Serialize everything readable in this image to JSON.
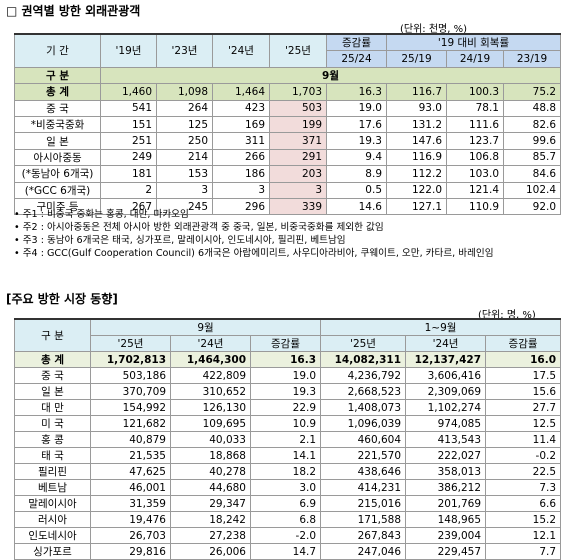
{
  "title": "□ 권역별 방한 외래관광객",
  "regional": {
    "unit": "(단위: 천명, %)",
    "header": {
      "period": "기 간",
      "years": [
        "'19년",
        "'23년",
        "'24년",
        "'25년"
      ],
      "change": "증감률",
      "recovery": "'19 대비 회복률",
      "sub": [
        "25/24",
        "25/19",
        "24/19",
        "23/19"
      ],
      "category": "구 분",
      "month": "9월"
    },
    "rows": [
      [
        "총 계",
        "1,460",
        "1,098",
        "1,464",
        "1,703",
        "16.3",
        "116.7",
        "100.3",
        "75.2"
      ],
      [
        "중 국",
        "541",
        "264",
        "423",
        "503",
        "19.0",
        "93.0",
        "78.1",
        "48.8"
      ],
      [
        "*비중국중화",
        "151",
        "125",
        "169",
        "199",
        "17.6",
        "131.2",
        "111.6",
        "82.6"
      ],
      [
        "일 본",
        "251",
        "250",
        "311",
        "371",
        "19.3",
        "147.6",
        "123.7",
        "99.6"
      ],
      [
        "아시아중동",
        "249",
        "214",
        "266",
        "291",
        "9.4",
        "116.9",
        "106.8",
        "85.7"
      ],
      [
        "(*동남아 6개국)",
        "181",
        "153",
        "186",
        "203",
        "8.9",
        "112.2",
        "103.0",
        "84.6"
      ],
      [
        "(*GCC 6개국)",
        "2",
        "3",
        "3",
        "3",
        "0.5",
        "122.0",
        "121.4",
        "102.4"
      ],
      [
        "구미주 등",
        "267",
        "245",
        "296",
        "339",
        "14.6",
        "127.1",
        "110.9",
        "92.0"
      ]
    ],
    "notes": [
      "• 주1 : 비중국 중화는 홍콩, 대만, 마카오임",
      "• 주2 : 아시아중동은 전체 아시아 방한 외래관광객 중 중국, 일본, 비중국중화를 제외한 값임",
      "• 주3 : 동남아 6개국은 태국, 싱가포르, 말레이시아, 인도네시아, 필리핀, 베트남임",
      "• 주4 : GCC(Gulf Cooperation Council) 6개국은 아랍에미리트, 사우디아라비아, 쿠웨이트, 오만, 카타르, 바레인임"
    ]
  },
  "markets": {
    "title": "[주요 방한 시장 동향]",
    "unit": "(단위: 명, %)",
    "header": {
      "category": "구 분",
      "groups": [
        "9월",
        "1~9월"
      ],
      "cols": [
        "'25년",
        "'24년",
        "증감률",
        "'25년",
        "'24년",
        "증감률"
      ]
    },
    "rows": [
      [
        "총 계",
        "1,702,813",
        "1,464,300",
        "16.3",
        "14,082,311",
        "12,137,427",
        "16.0"
      ],
      [
        "중 국",
        "503,186",
        "422,809",
        "19.0",
        "4,236,792",
        "3,606,416",
        "17.5"
      ],
      [
        "일 본",
        "370,709",
        "310,652",
        "19.3",
        "2,668,523",
        "2,309,069",
        "15.6"
      ],
      [
        "대 만",
        "154,992",
        "126,130",
        "22.9",
        "1,408,073",
        "1,102,274",
        "27.7"
      ],
      [
        "미 국",
        "121,682",
        "109,695",
        "10.9",
        "1,096,039",
        "974,085",
        "12.5"
      ],
      [
        "홍 콩",
        "40,879",
        "40,033",
        "2.1",
        "460,604",
        "413,543",
        "11.4"
      ],
      [
        "태 국",
        "21,535",
        "18,868",
        "14.1",
        "221,570",
        "222,027",
        "-0.2"
      ],
      [
        "필리핀",
        "47,625",
        "40,278",
        "18.2",
        "438,646",
        "358,013",
        "22.5"
      ],
      [
        "베트남",
        "46,001",
        "44,680",
        "3.0",
        "414,231",
        "386,212",
        "7.3"
      ],
      [
        "말레이시아",
        "31,359",
        "29,347",
        "6.9",
        "215,016",
        "201,769",
        "6.6"
      ],
      [
        "러시아",
        "19,476",
        "18,242",
        "6.8",
        "171,588",
        "148,965",
        "15.2"
      ],
      [
        "인도네시아",
        "26,703",
        "27,238",
        "-2.0",
        "267,843",
        "239,004",
        "12.1"
      ],
      [
        "싱가포르",
        "29,816",
        "26,006",
        "14.7",
        "247,046",
        "229,457",
        "7.7"
      ]
    ]
  }
}
